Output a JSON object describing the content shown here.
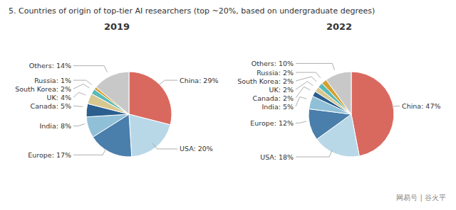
{
  "title": "5. Countries of origin of top-tier AI researchers (top ~20%, based on undergraduate degrees)",
  "annotations": [
    "网易号 | 谷火平"
  ],
  "chart_data": [
    {
      "type": "pie",
      "title": "2019",
      "categories": [
        "China",
        "USA",
        "Europe",
        "India",
        "Canada",
        "UK",
        "South Korea",
        "Russia",
        "Others"
      ],
      "values": [
        29,
        20,
        17,
        8,
        5,
        4,
        2,
        1,
        14
      ],
      "colors": [
        "#d9695f",
        "#b8d8e8",
        "#4a7eab",
        "#90c0d8",
        "#2b5f8e",
        "#d8c890",
        "#5bbab8",
        "#d4a030",
        "#c8c8c8"
      ],
      "data_labels": true,
      "value_labels": [
        "China: 29%",
        "USA: 20%",
        "Europe: 17%",
        "India: 8%",
        "Canada: 5%",
        "UK: 4%",
        "South Korea: 2%",
        "Russia: 1%",
        "Others: 14%"
      ]
    },
    {
      "type": "pie",
      "title": "2022",
      "categories": [
        "China",
        "USA",
        "Europe",
        "India",
        "Canada",
        "UK",
        "South Korea",
        "Russia",
        "Others"
      ],
      "values": [
        47,
        18,
        12,
        5,
        2,
        2,
        2,
        2,
        10
      ],
      "colors": [
        "#d9695f",
        "#b8d8e8",
        "#4a7eab",
        "#90c0d8",
        "#2b5f8e",
        "#d8c890",
        "#5bbab8",
        "#d4a030",
        "#c8c8c8"
      ],
      "data_labels": true,
      "value_labels": [
        "China: 47%",
        "USA: 18%",
        "Europe: 12%",
        "India: 5%",
        "Canada: 2%",
        "UK: 2%",
        "South Korea: 2%",
        "Russia: 2%",
        "Others: 10%"
      ]
    }
  ]
}
